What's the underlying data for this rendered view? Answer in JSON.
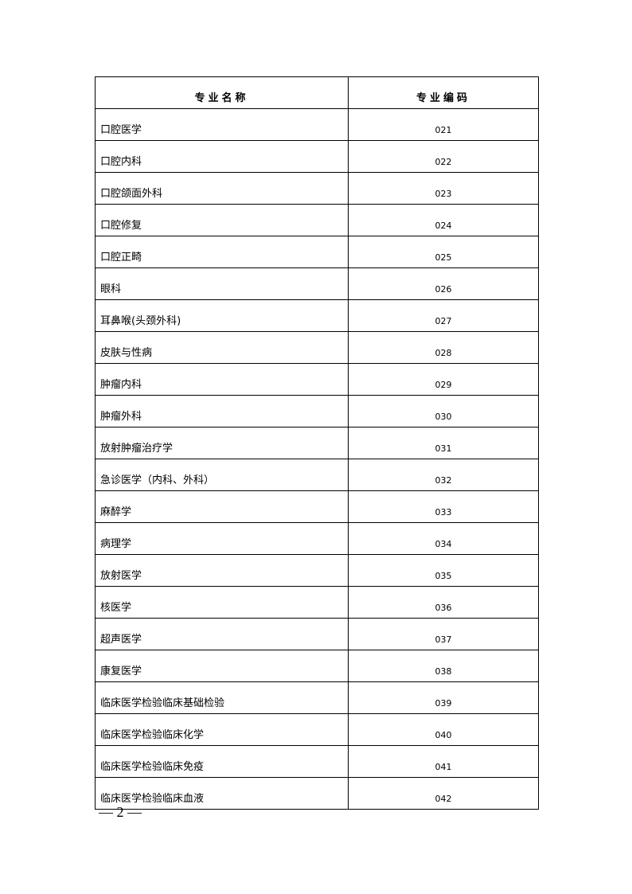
{
  "table": {
    "headers": [
      "专业名称",
      "专业编码"
    ],
    "rows": [
      {
        "name": "口腔医学",
        "code": "021"
      },
      {
        "name": "口腔内科",
        "code": "022"
      },
      {
        "name": "口腔颌面外科",
        "code": "023"
      },
      {
        "name": "口腔修复",
        "code": "024"
      },
      {
        "name": "口腔正畸",
        "code": "025"
      },
      {
        "name": "眼科",
        "code": "026"
      },
      {
        "name": "耳鼻喉(头颈外科)",
        "code": "027"
      },
      {
        "name": "皮肤与性病",
        "code": "028"
      },
      {
        "name": "肿瘤内科",
        "code": "029"
      },
      {
        "name": "肿瘤外科",
        "code": "030"
      },
      {
        "name": "放射肿瘤治疗学",
        "code": "031"
      },
      {
        "name": "急诊医学（内科、外科）",
        "code": "032"
      },
      {
        "name": "麻醉学",
        "code": "033"
      },
      {
        "name": "病理学",
        "code": "034"
      },
      {
        "name": "放射医学",
        "code": "035"
      },
      {
        "name": "核医学",
        "code": "036"
      },
      {
        "name": "超声医学",
        "code": "037"
      },
      {
        "name": "康复医学",
        "code": "038"
      },
      {
        "name": "临床医学检验临床基础检验",
        "code": "039"
      },
      {
        "name": "临床医学检验临床化学",
        "code": "040"
      },
      {
        "name": "临床医学检验临床免疫",
        "code": "041"
      },
      {
        "name": "临床医学检验临床血液",
        "code": "042"
      }
    ]
  },
  "footer": {
    "page_number": "— 2 —"
  }
}
